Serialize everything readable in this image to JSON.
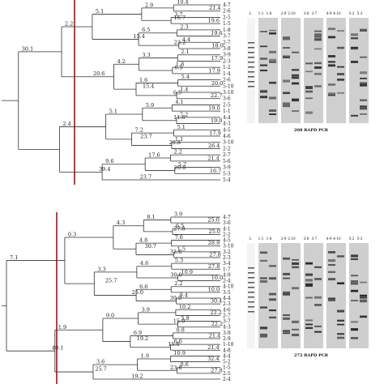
{
  "panels": [
    {
      "id": "top",
      "gel_caption": "208 RAPD PCR",
      "lane_labels": [
        "L",
        "1-1",
        "1-8",
        "2-9",
        "2-10",
        "3-6",
        "3-7",
        "4-9",
        "4-10",
        "5-2",
        "5-3"
      ],
      "branch_labels": [
        "10.4",
        "3.7",
        "2.3",
        "4.4",
        "2.1",
        "1.8",
        "5.4",
        "1.4",
        "4.1",
        "7.2",
        "5.1",
        "1.1",
        "2.2",
        "5.7",
        "2.9",
        "6.5",
        "3.3",
        "1.6",
        "5.9",
        "7.2",
        "17.6",
        "5.1",
        "4.2",
        "5.1",
        "9.6",
        "2.2",
        "2.4",
        "30.1",
        "7.0",
        "4.8",
        "46.6"
      ],
      "branch_values": [
        "21.4",
        "19.6",
        "19.6",
        "18.0",
        "17.9",
        "17.9",
        "20.0",
        "22.7",
        "19.0",
        "19.0",
        "17.9",
        "26.4",
        "21.4",
        "16.7",
        "16.7",
        "23.2",
        "6.5",
        "6.5",
        "11.6",
        "20.8",
        "20.8",
        "15.4",
        "15.4",
        "23.7",
        "23.7",
        "20.6",
        "39.4"
      ],
      "leaves": [
        "4-7",
        "2-6",
        "2-5",
        "1-5",
        "1-8",
        "3-7",
        "2-7",
        "3-8",
        "3-9",
        "2-3",
        "1-2",
        "1-4",
        "2-6",
        "5-10",
        "3-10",
        "3-6",
        "2-5",
        "1-1",
        "4-4",
        "4-3",
        "4-5",
        "4-6",
        "3-10",
        "2-2",
        "2-7",
        "5-6",
        "3-9",
        "5-3",
        "5-4"
      ]
    },
    {
      "id": "bottom",
      "gel_caption": "272 RAPD PCR",
      "lane_labels": [
        "L",
        "1-1",
        "1-8",
        "2-9",
        "2-10",
        "3-6",
        "3-7",
        "4-9",
        "4-10",
        "5-2",
        "5-3"
      ],
      "branch_labels": [
        "3.9",
        "6.5",
        "7.6",
        "1.5",
        "5.3",
        "10.9",
        "2.2",
        "9.4",
        "10.2",
        "5.8",
        "0.8",
        "6.6",
        "10.9",
        "0.6",
        "8.1",
        "4.8",
        "4.6",
        "6.6",
        "3.9",
        "6.9",
        "1.9",
        "4.3",
        "3.3",
        "9.0",
        "3.6",
        "0.3",
        "1.9",
        "7.1",
        "5.4",
        "9.5",
        "1.7"
      ],
      "branch_values": [
        "25.0",
        "25.0",
        "28.9",
        "27.8",
        "27.8",
        "10.0",
        "10.0",
        "30.4",
        "22.2",
        "22.2",
        "21.4",
        "21.4",
        "32.4",
        "27.8",
        "27.8",
        "32.6",
        "30.0",
        "30.0",
        "15.0",
        "15.0",
        "23.8",
        "30.7",
        "25.0",
        "19.2",
        "19.2",
        "25.7",
        "25.7",
        "40.1"
      ],
      "leaves": [
        "4-7",
        "3-6",
        "4-1",
        "2-2",
        "4-5",
        "3-10",
        "3-2",
        "2-3",
        "3-4",
        "1-7",
        "4-9",
        "2-4",
        "4-10",
        "3-5",
        "4-4",
        "2-3",
        "4-6",
        "2-7",
        "3-7",
        "4-3",
        "3-9",
        "2-9",
        "1-10",
        "4-8",
        "4-4",
        "5-2",
        "1-5",
        "2-5",
        "2-4"
      ]
    }
  ]
}
